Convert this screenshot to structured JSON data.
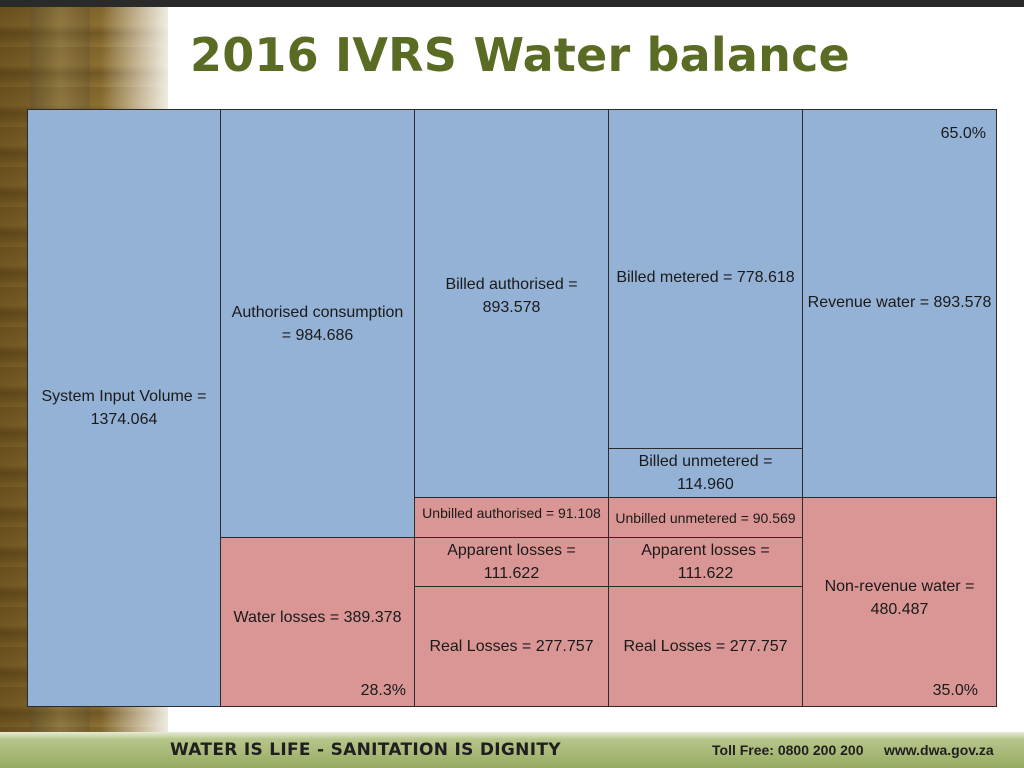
{
  "title": "2016 IVRS Water balance",
  "colors": {
    "authorised": "#94b2d6",
    "losses": "#d99694",
    "title": "#5a6b24"
  },
  "diagram": {
    "system_input": "System Input Volume = 1374.064",
    "authorised_consumption": "Authorised consumption = 984.686",
    "water_losses": "Water losses = 389.378",
    "water_losses_pct": "28.3%",
    "billed_authorised": "Billed authorised = 893.578",
    "unbilled_authorised": "Unbilled authorised = 91.108",
    "apparent_losses_left": "Apparent losses = 111.622",
    "real_losses_left": "Real Losses = 277.757",
    "billed_metered": "Billed metered = 778.618",
    "billed_unmetered": "Billed unmetered = 114.960",
    "unbilled_unmetered": "Unbilled unmetered = 90.569",
    "apparent_losses_right": "Apparent losses = 111.622",
    "real_losses_right": "Real Losses = 277.757",
    "revenue_water": "Revenue water = 893.578",
    "revenue_water_pct": "65.0%",
    "non_revenue_water": "Non-revenue water = 480.487",
    "non_revenue_water_pct": "35.0%"
  },
  "footer": {
    "slogan": "WATER IS LIFE - SANITATION IS DIGNITY",
    "toll_free": "Toll Free: 0800 200 200",
    "url": "www.dwa.gov.za"
  }
}
